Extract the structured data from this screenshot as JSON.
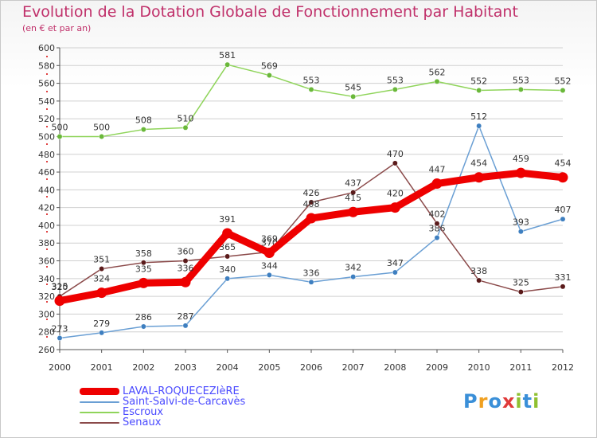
{
  "chart_data": {
    "type": "line",
    "title": "Evolution de la Dotation Globale de Fonctionnement par Habitant",
    "subtitle": "(en € et par an)",
    "xlabel": "",
    "ylabel": "",
    "ylim": [
      260,
      600
    ],
    "yticks": [
      260,
      280,
      300,
      320,
      340,
      360,
      380,
      400,
      420,
      440,
      460,
      480,
      500,
      520,
      540,
      560,
      580,
      600
    ],
    "x": [
      "2000",
      "2001",
      "2002",
      "2003",
      "2004",
      "2005",
      "2006",
      "2007",
      "2008",
      "2009",
      "2010",
      "2011",
      "2012"
    ],
    "grid": "horizontal",
    "legend": "bottom-left",
    "series": [
      {
        "name": "Escroux",
        "color": "#8fd45a",
        "dot": "#6ab83a",
        "values": [
          500,
          500,
          508,
          510,
          581,
          569,
          553,
          545,
          553,
          562,
          552,
          553,
          552
        ]
      },
      {
        "name": "Saint-Salvi-de-Carcavès",
        "color": "#6a9fd4",
        "dot": "#3e7fc0",
        "values": [
          273,
          279,
          286,
          287,
          340,
          344,
          336,
          342,
          347,
          386,
          512,
          393,
          407
        ]
      },
      {
        "name": "Senaux",
        "color": "#8b4a4a",
        "dot": "#5a1a1a",
        "values": [
          320,
          351,
          358,
          360,
          365,
          370,
          426,
          437,
          470,
          402,
          338,
          325,
          331
        ]
      },
      {
        "name": "LAVAL-ROQUECEZIèRE",
        "color": "#ee0000",
        "dot": "#ee0000",
        "values": [
          315,
          324,
          335,
          336,
          391,
          369,
          408,
          415,
          420,
          447,
          454,
          459,
          454
        ]
      }
    ],
    "label_strings": {
      "Escroux": [
        "500",
        "500",
        "508",
        "510",
        "581",
        "569",
        "553",
        "545",
        "553",
        "562",
        "552",
        "553",
        "552"
      ],
      "Saint-Salvi-de-Carcavès": [
        "273",
        "279",
        "286",
        "287",
        "340",
        "344",
        "336",
        "342",
        "347",
        "386",
        "512",
        "393",
        "407"
      ],
      "Senaux": [
        "320",
        "351",
        "358",
        "360",
        "365",
        "370",
        "426",
        "437",
        "470",
        "402",
        "338",
        "325",
        "331"
      ],
      "LAVAL-ROQUECEZIèRE": [
        "315",
        "324",
        "335",
        "336",
        "391",
        "369",
        "408",
        "415",
        "420",
        "447",
        "454",
        "459",
        "454"
      ]
    }
  },
  "legend_items": [
    {
      "label": "LAVAL-ROQUECEZIèRE",
      "color": "#ee0000",
      "text_color": "#4a4aff"
    },
    {
      "label": "Saint-Salvi-de-Carcavès",
      "color": "#6a9fd4",
      "text_color": "#4a4aff"
    },
    {
      "label": "Escroux",
      "color": "#8fd45a",
      "text_color": "#4a4aff"
    },
    {
      "label": "Senaux",
      "color": "#8b4a4a",
      "text_color": "#4a4aff"
    }
  ],
  "logo": {
    "text": "Proxiti",
    "letters": [
      "P",
      "r",
      "o",
      "x",
      "i",
      "t",
      "i"
    ],
    "colors": [
      "#3a8fd8",
      "#f0a020",
      "#3a8fd8",
      "#e03a3a",
      "#8fc030",
      "#3a8fd8",
      "#8fc030"
    ]
  },
  "colors": {
    "title": "#c0306a",
    "axis": "#555555",
    "grid": "#d0d0d0"
  }
}
